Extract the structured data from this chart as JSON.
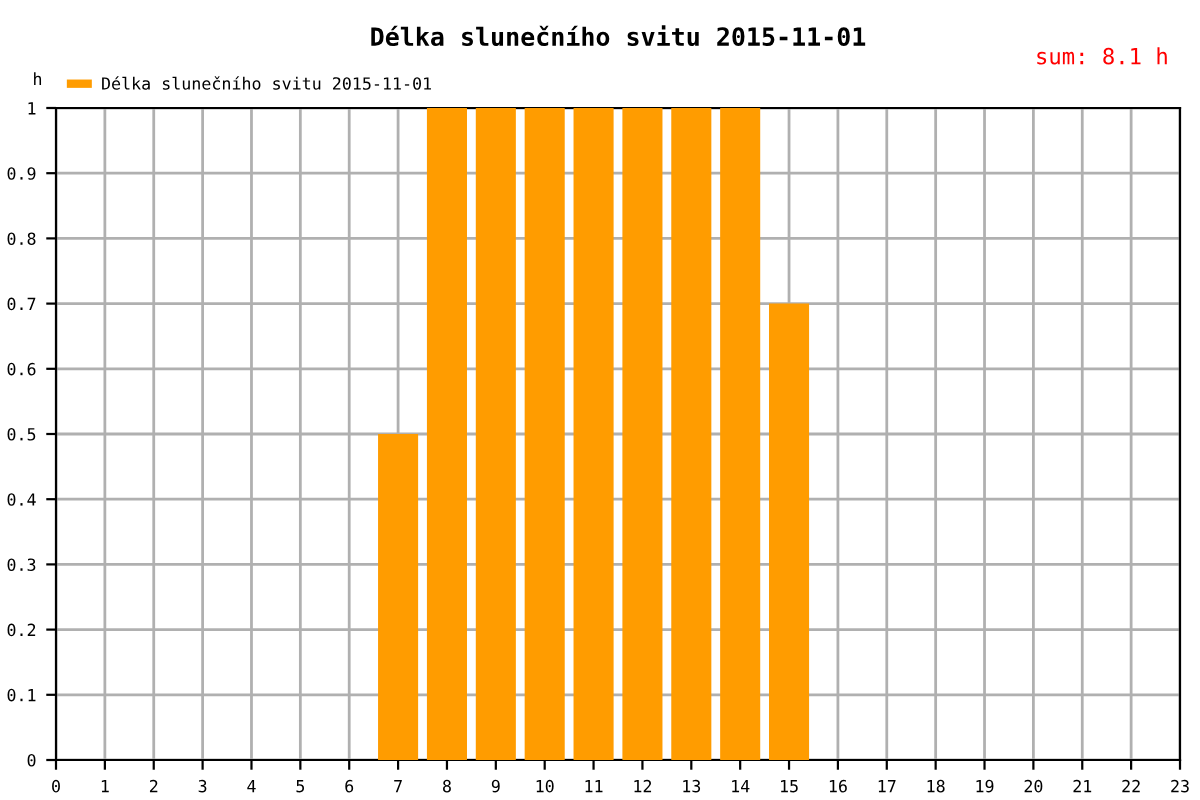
{
  "chart_data": {
    "type": "bar",
    "title": "Délka slunečního svitu 2015-11-01",
    "ylabel": "h",
    "annotations": [
      "sum: 8.1 h"
    ],
    "x": [
      0,
      1,
      2,
      3,
      4,
      5,
      6,
      7,
      8,
      9,
      10,
      11,
      12,
      13,
      14,
      15,
      16,
      17,
      18,
      19,
      20,
      21,
      22,
      23
    ],
    "series": [
      {
        "name": "Délka slunečního svitu 2015-11-01",
        "color": "#ff9c00",
        "values": [
          0,
          0,
          0,
          0,
          0,
          0,
          0,
          0.5,
          1,
          1,
          1,
          1,
          1,
          1,
          1,
          0.7,
          0,
          0,
          0,
          0,
          0,
          0,
          0,
          0
        ]
      }
    ],
    "xlim": [
      0,
      23
    ],
    "xticks": [
      0,
      1,
      2,
      3,
      4,
      5,
      6,
      7,
      8,
      9,
      10,
      11,
      12,
      13,
      14,
      15,
      16,
      17,
      18,
      19,
      20,
      21,
      22,
      23
    ],
    "ylim": [
      0,
      1
    ],
    "yticks": [
      0,
      0.1,
      0.2,
      0.3,
      0.4,
      0.5,
      0.6,
      0.7,
      0.8,
      0.9,
      1
    ],
    "grid": true,
    "legend": "top left"
  }
}
